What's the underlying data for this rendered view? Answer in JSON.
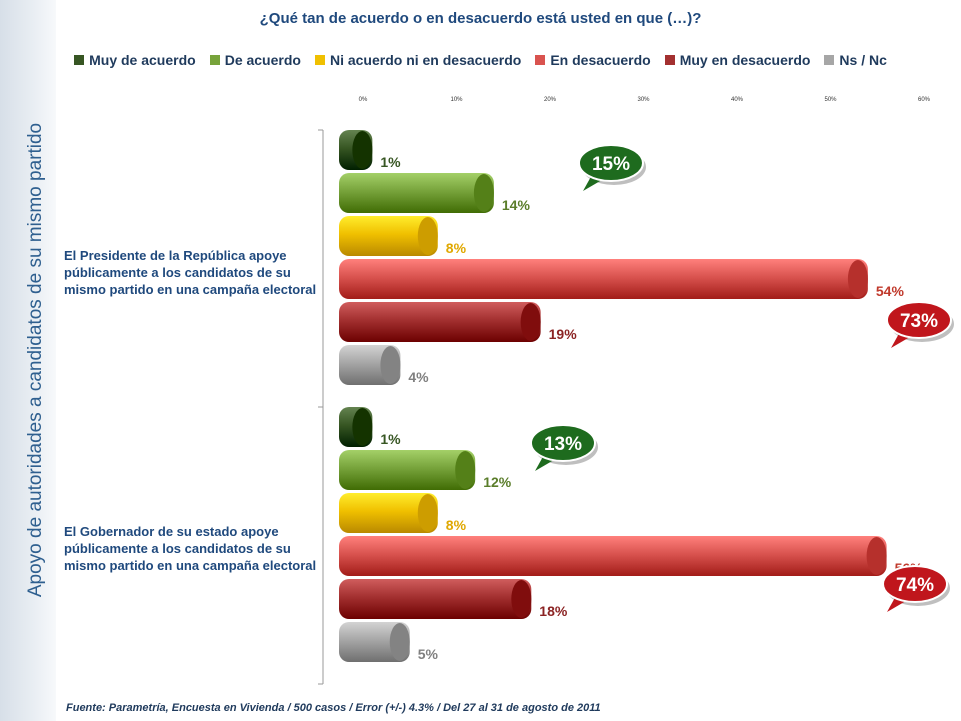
{
  "title": "¿Qué tan de acuerdo o en desacuerdo está usted en que (…)?",
  "side_title": "Apoyo de autoridades a candidatos de su mismo partido",
  "footer": "Fuente: Parametría, Encuesta en Vivienda / 500 casos / Error (+/-) 4.3% / Del  27 al 31 de agosto de 2011",
  "legend": [
    {
      "label": "Muy de acuerdo",
      "color": "#375623"
    },
    {
      "label": "De acuerdo",
      "color": "#77a33b"
    },
    {
      "label": "Ni acuerdo ni en desacuerdo",
      "color": "#f0c000"
    },
    {
      "label": "En desacuerdo",
      "color": "#d9534f"
    },
    {
      "label": "Muy en desacuerdo",
      "color": "#a33030"
    },
    {
      "label": "Ns / Nc",
      "color": "#a6a6a6"
    }
  ],
  "chart_data": {
    "type": "bar",
    "orientation": "horizontal",
    "xlim": [
      0,
      60
    ],
    "x_ticks": [
      "0%",
      "10%",
      "20%",
      "30%",
      "40%",
      "50%",
      "60%"
    ],
    "categories": [
      "El Presidente de la República apoye públicamente a los candidatos de su mismo partido en una campaña electoral",
      "El Gobernador de su estado apoye públicamente a los candidatos de su mismo partido en una campaña electoral"
    ],
    "series": [
      {
        "name": "Muy de acuerdo",
        "values": [
          1,
          1
        ],
        "labels": [
          "1%",
          "1%"
        ],
        "color": "#375623",
        "label_color": "#375623"
      },
      {
        "name": "De acuerdo",
        "values": [
          14,
          12
        ],
        "labels": [
          "14%",
          "12%"
        ],
        "color": "#77a33b",
        "label_color": "#5a7d2a"
      },
      {
        "name": "Ni acuerdo ni en desacuerdo",
        "values": [
          8,
          8
        ],
        "labels": [
          "8%",
          "8%"
        ],
        "color": "#f0c000",
        "label_color": "#e0a800"
      },
      {
        "name": "En desacuerdo",
        "values": [
          54,
          56
        ],
        "labels": [
          "54%",
          "56%"
        ],
        "color": "#d9534f",
        "label_color": "#c0392b"
      },
      {
        "name": "Muy en desacuerdo",
        "values": [
          19,
          18
        ],
        "labels": [
          "19%",
          "18%"
        ],
        "color": "#a33030",
        "label_color": "#8b2323"
      },
      {
        "name": "Ns / Nc",
        "values": [
          4,
          5
        ],
        "labels": [
          "4%",
          "5%"
        ],
        "color": "#a6a6a6",
        "label_color": "#808080"
      }
    ],
    "annotations": [
      {
        "text": "15%",
        "color": "#1e6b1e",
        "group": 0,
        "kind": "agree"
      },
      {
        "text": "73%",
        "color": "#c0161c",
        "group": 0,
        "kind": "disagree"
      },
      {
        "text": "13%",
        "color": "#1e6b1e",
        "group": 1,
        "kind": "agree"
      },
      {
        "text": "74%",
        "color": "#c0161c",
        "group": 1,
        "kind": "disagree"
      }
    ]
  }
}
